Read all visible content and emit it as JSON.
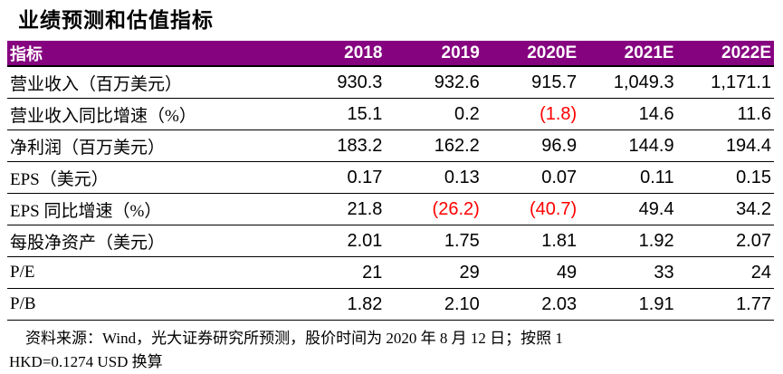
{
  "colors": {
    "accent": "#860380",
    "negative": "#ff0000"
  },
  "title": "业绩预测和估值指标",
  "table": {
    "columns": [
      "指标",
      "2018",
      "2019",
      "2020E",
      "2021E",
      "2022E"
    ],
    "negative_format": "values in parentheses are shown in red",
    "rows": [
      {
        "label": "营业收入（百万美元）",
        "values": [
          "930.3",
          "932.6",
          "915.7",
          "1,049.3",
          "1,171.1"
        ]
      },
      {
        "label": "营业收入同比增速（%）",
        "values": [
          "15.1",
          "0.2",
          "(1.8)",
          "14.6",
          "11.6"
        ]
      },
      {
        "label": "净利润（百万美元）",
        "values": [
          "183.2",
          "162.2",
          "96.9",
          "144.9",
          "194.4"
        ]
      },
      {
        "label": "EPS（美元）",
        "values": [
          "0.17",
          "0.13",
          "0.07",
          "0.11",
          "0.15"
        ]
      },
      {
        "label": "EPS 同比增速（%）",
        "values": [
          "21.8",
          "(26.2)",
          "(40.7)",
          "49.4",
          "34.2"
        ]
      },
      {
        "label": "每股净资产（美元）",
        "values": [
          "2.01",
          "1.75",
          "1.81",
          "1.92",
          "2.07"
        ]
      },
      {
        "label": "P/E",
        "values": [
          "21",
          "29",
          "49",
          "33",
          "24"
        ]
      },
      {
        "label": "P/B",
        "values": [
          "1.82",
          "2.10",
          "2.03",
          "1.91",
          "1.77"
        ]
      }
    ]
  },
  "footnote": {
    "line1": "资料来源：Wind，光大证券研究所预测，股价时间为 2020 年 8 月 12 日；按照 1",
    "line2": "HKD=0.1274 USD 换算"
  }
}
